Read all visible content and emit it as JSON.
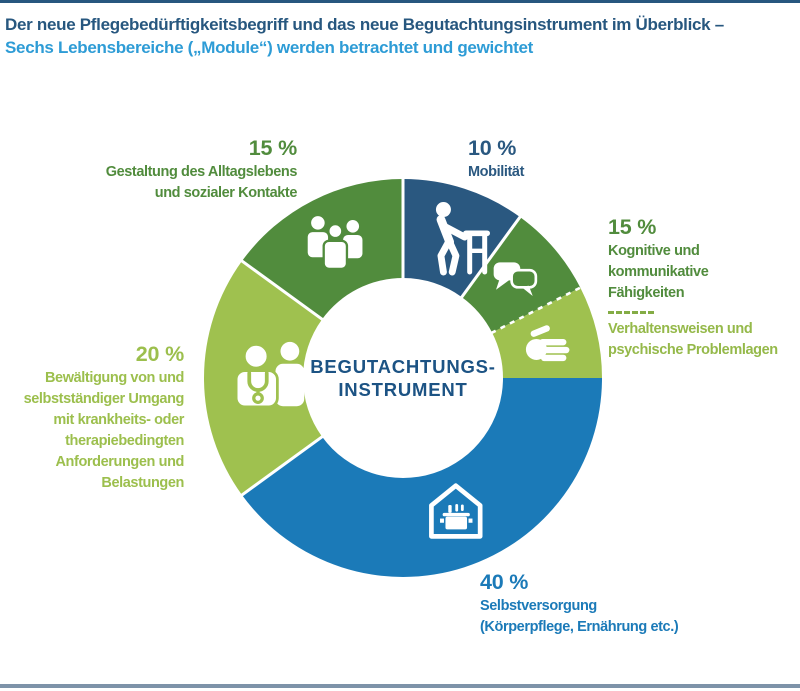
{
  "header": {
    "title_line1": "Der neue Pflegebedürftigkeitsbegriff und das neue Begutachtungsinstrument im Überblick –",
    "title_line2": "Sechs Lebensbereiche („Module“) werden betrachtet und gewichtet"
  },
  "palette": {
    "navy": "#2A5880",
    "blue": "#1B7AB8",
    "green": "#518C3D",
    "lime": "#9FC14F",
    "lime_text": "#9CBF4D",
    "light_green_text": "#95B94A",
    "header_navy": "#27577F",
    "header_blue": "#2E9CD6",
    "center_text": "#1C5384",
    "bottom_rule": "#7E93A9",
    "divider_white": "#FFFFFF"
  },
  "chart_data": {
    "type": "pie",
    "subtype": "donut",
    "title": "Sechs Lebensbereiche („Module“) werden betrachtet und gewichtet",
    "unit": "%",
    "center_label_line1": "BEGUTACHTUNGS-",
    "center_label_line2": "INSTRUMENT",
    "start_angle_deg": 0,
    "direction": "clockwise",
    "inner_radius_ratio": 0.5,
    "legend_position": "around",
    "segments": [
      {
        "label": "Mobilität",
        "value": 10,
        "color": "#2A5880",
        "icon": "walker-icon",
        "icon_size": 80,
        "icon_angle": 22,
        "divider_after": "solid"
      },
      {
        "label": "Kognitive und kommunikative Fähigkeiten",
        "value": 7.5,
        "color": "#518C3D",
        "icon": "speech-bubbles-icon",
        "icon_size": 50,
        "divider_after": "dashed"
      },
      {
        "label": "Verhaltensweisen und psychische Problemlagen",
        "value": 7.5,
        "color": "#9FC14F",
        "icon": "hand-icon",
        "icon_size": 48,
        "divider_after": "none"
      },
      {
        "label": "Selbstversorgung (Körperpflege, Ernährung etc.)",
        "value": 40,
        "color": "#1B7AB8",
        "icon": "house-pot-icon",
        "icon_size": 60,
        "icon_angle": 158.5,
        "icon_radius": 144,
        "divider_after": "solid"
      },
      {
        "label": "Bewältigung von und selbstständiger Umgang mit krankheits- oder therapiebedingten Anforderungen und Belastungen",
        "value": 20,
        "color": "#9FC14F",
        "icon": "doctor-patient-icon",
        "icon_size": 80,
        "icon_angle": 270.5,
        "icon_radius": 130,
        "divider_after": "solid"
      },
      {
        "label": "Gestaltung des Alltagslebens und sozialer Kontakte",
        "value": 15,
        "color": "#518C3D",
        "icon": "people-group-icon",
        "icon_size": 62,
        "divider_after": "solid"
      }
    ]
  },
  "labels": {
    "gestaltung": {
      "pct": "15 %",
      "line1": "Gestaltung des Alltagslebens",
      "line2": "und sozialer Kontakte"
    },
    "mobilitaet": {
      "pct": "10 %",
      "line1": "Mobilität"
    },
    "kognitive": {
      "pct": "15 %",
      "line1": "Kognitive und kommunikative",
      "line2": "Fähigkeiten",
      "line3": "Verhaltensweisen und",
      "line4": "psychische Problemlagen"
    },
    "bewaeltigung": {
      "pct": "20 %",
      "line1": "Bewältigung von und",
      "line2": "selbstständiger Umgang",
      "line3": "mit krankheits- oder",
      "line4": "therapiebedingten",
      "line5": "Anforderungen und",
      "line6": "Belastungen"
    },
    "selbstversorgung": {
      "pct": "40 %",
      "line1": "Selbstversorgung",
      "line2": "(Körperpflege, Ernährung etc.)"
    }
  }
}
